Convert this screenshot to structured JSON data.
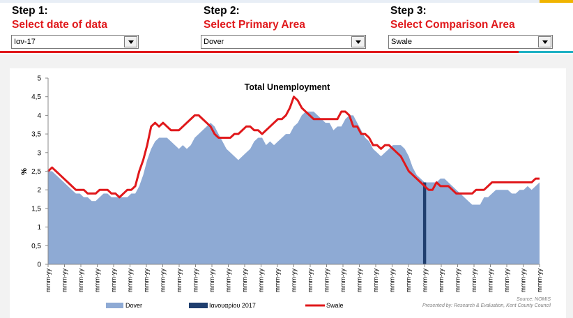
{
  "steps": [
    {
      "title": "Step 1:",
      "subtitle": "Select date of data",
      "selected": "Ιαν-17"
    },
    {
      "title": "Step 2:",
      "subtitle": "Select Primary Area",
      "selected": "Dover"
    },
    {
      "title": "Step 3:",
      "subtitle": "Select Comparison Area",
      "selected": "Swale"
    }
  ],
  "colors": {
    "accent_red": "#e0181b",
    "area_blue": "#8eaad4",
    "marker_navy": "#1f3e6e",
    "teal": "#1fb1c4"
  },
  "footer": {
    "source": "Source: NOMIS",
    "presented_by": "Presented by: Research & Evaluation, Kent County Council"
  },
  "chart_data": {
    "type": "area",
    "title": "Total Unemployment",
    "xlabel": "",
    "ylabel": "%",
    "ylim": [
      0,
      5
    ],
    "yticks": [
      "0",
      "0,5",
      "1",
      "1,5",
      "2",
      "2,5",
      "3",
      "3,5",
      "4",
      "4,5",
      "5"
    ],
    "x_tick_label": "mmm-yy",
    "x_tick_count": 31,
    "legend_position": "bottom",
    "highlight_index": 95,
    "series": [
      {
        "name": "Dover",
        "kind": "area",
        "values": [
          2.5,
          2.5,
          2.4,
          2.3,
          2.2,
          2.1,
          2.0,
          1.9,
          1.9,
          1.8,
          1.8,
          1.7,
          1.7,
          1.8,
          1.9,
          1.9,
          1.8,
          1.8,
          1.8,
          1.8,
          1.8,
          1.9,
          1.9,
          2.1,
          2.4,
          2.8,
          3.1,
          3.3,
          3.4,
          3.4,
          3.4,
          3.3,
          3.2,
          3.1,
          3.2,
          3.1,
          3.2,
          3.4,
          3.5,
          3.6,
          3.7,
          3.8,
          3.7,
          3.5,
          3.3,
          3.1,
          3.0,
          2.9,
          2.8,
          2.9,
          3.0,
          3.1,
          3.3,
          3.4,
          3.4,
          3.2,
          3.3,
          3.2,
          3.3,
          3.4,
          3.5,
          3.5,
          3.7,
          3.8,
          4.0,
          4.1,
          4.1,
          4.1,
          4.0,
          3.9,
          3.8,
          3.8,
          3.6,
          3.7,
          3.7,
          3.9,
          4.0,
          4.0,
          3.8,
          3.6,
          3.4,
          3.3,
          3.1,
          3.0,
          2.9,
          3.0,
          3.1,
          3.2,
          3.2,
          3.2,
          3.1,
          2.9,
          2.6,
          2.4,
          2.3,
          2.2,
          2.2,
          2.2,
          2.2,
          2.3,
          2.3,
          2.2,
          2.1,
          2.0,
          1.9,
          1.8,
          1.7,
          1.6,
          1.6,
          1.6,
          1.8,
          1.8,
          1.9,
          2.0,
          2.0,
          2.0,
          2.0,
          1.9,
          1.9,
          2.0,
          2.0,
          2.1,
          2.0,
          2.1,
          2.2
        ]
      },
      {
        "name": "Ιανουαρίου 2017",
        "kind": "bar"
      },
      {
        "name": "Swale",
        "kind": "line",
        "values": [
          2.5,
          2.6,
          2.5,
          2.4,
          2.3,
          2.2,
          2.1,
          2.0,
          2.0,
          2.0,
          1.9,
          1.9,
          1.9,
          2.0,
          2.0,
          2.0,
          1.9,
          1.9,
          1.8,
          1.9,
          2.0,
          2.0,
          2.1,
          2.5,
          2.8,
          3.2,
          3.7,
          3.8,
          3.7,
          3.8,
          3.7,
          3.6,
          3.6,
          3.6,
          3.7,
          3.8,
          3.9,
          4.0,
          4.0,
          3.9,
          3.8,
          3.7,
          3.5,
          3.4,
          3.4,
          3.4,
          3.4,
          3.5,
          3.5,
          3.6,
          3.7,
          3.7,
          3.6,
          3.6,
          3.5,
          3.6,
          3.7,
          3.8,
          3.9,
          3.9,
          4.0,
          4.2,
          4.5,
          4.4,
          4.2,
          4.1,
          4.0,
          3.9,
          3.9,
          3.9,
          3.9,
          3.9,
          3.9,
          3.9,
          4.1,
          4.1,
          4.0,
          3.7,
          3.7,
          3.5,
          3.5,
          3.4,
          3.2,
          3.2,
          3.1,
          3.2,
          3.2,
          3.1,
          3.0,
          2.9,
          2.7,
          2.5,
          2.4,
          2.3,
          2.2,
          2.1,
          2.0,
          2.0,
          2.2,
          2.1,
          2.1,
          2.1,
          2.0,
          1.9,
          1.9,
          1.9,
          1.9,
          1.9,
          2.0,
          2.0,
          2.0,
          2.1,
          2.2,
          2.2,
          2.2,
          2.2,
          2.2,
          2.2,
          2.2,
          2.2,
          2.2,
          2.2,
          2.2,
          2.3,
          2.3
        ]
      }
    ]
  }
}
